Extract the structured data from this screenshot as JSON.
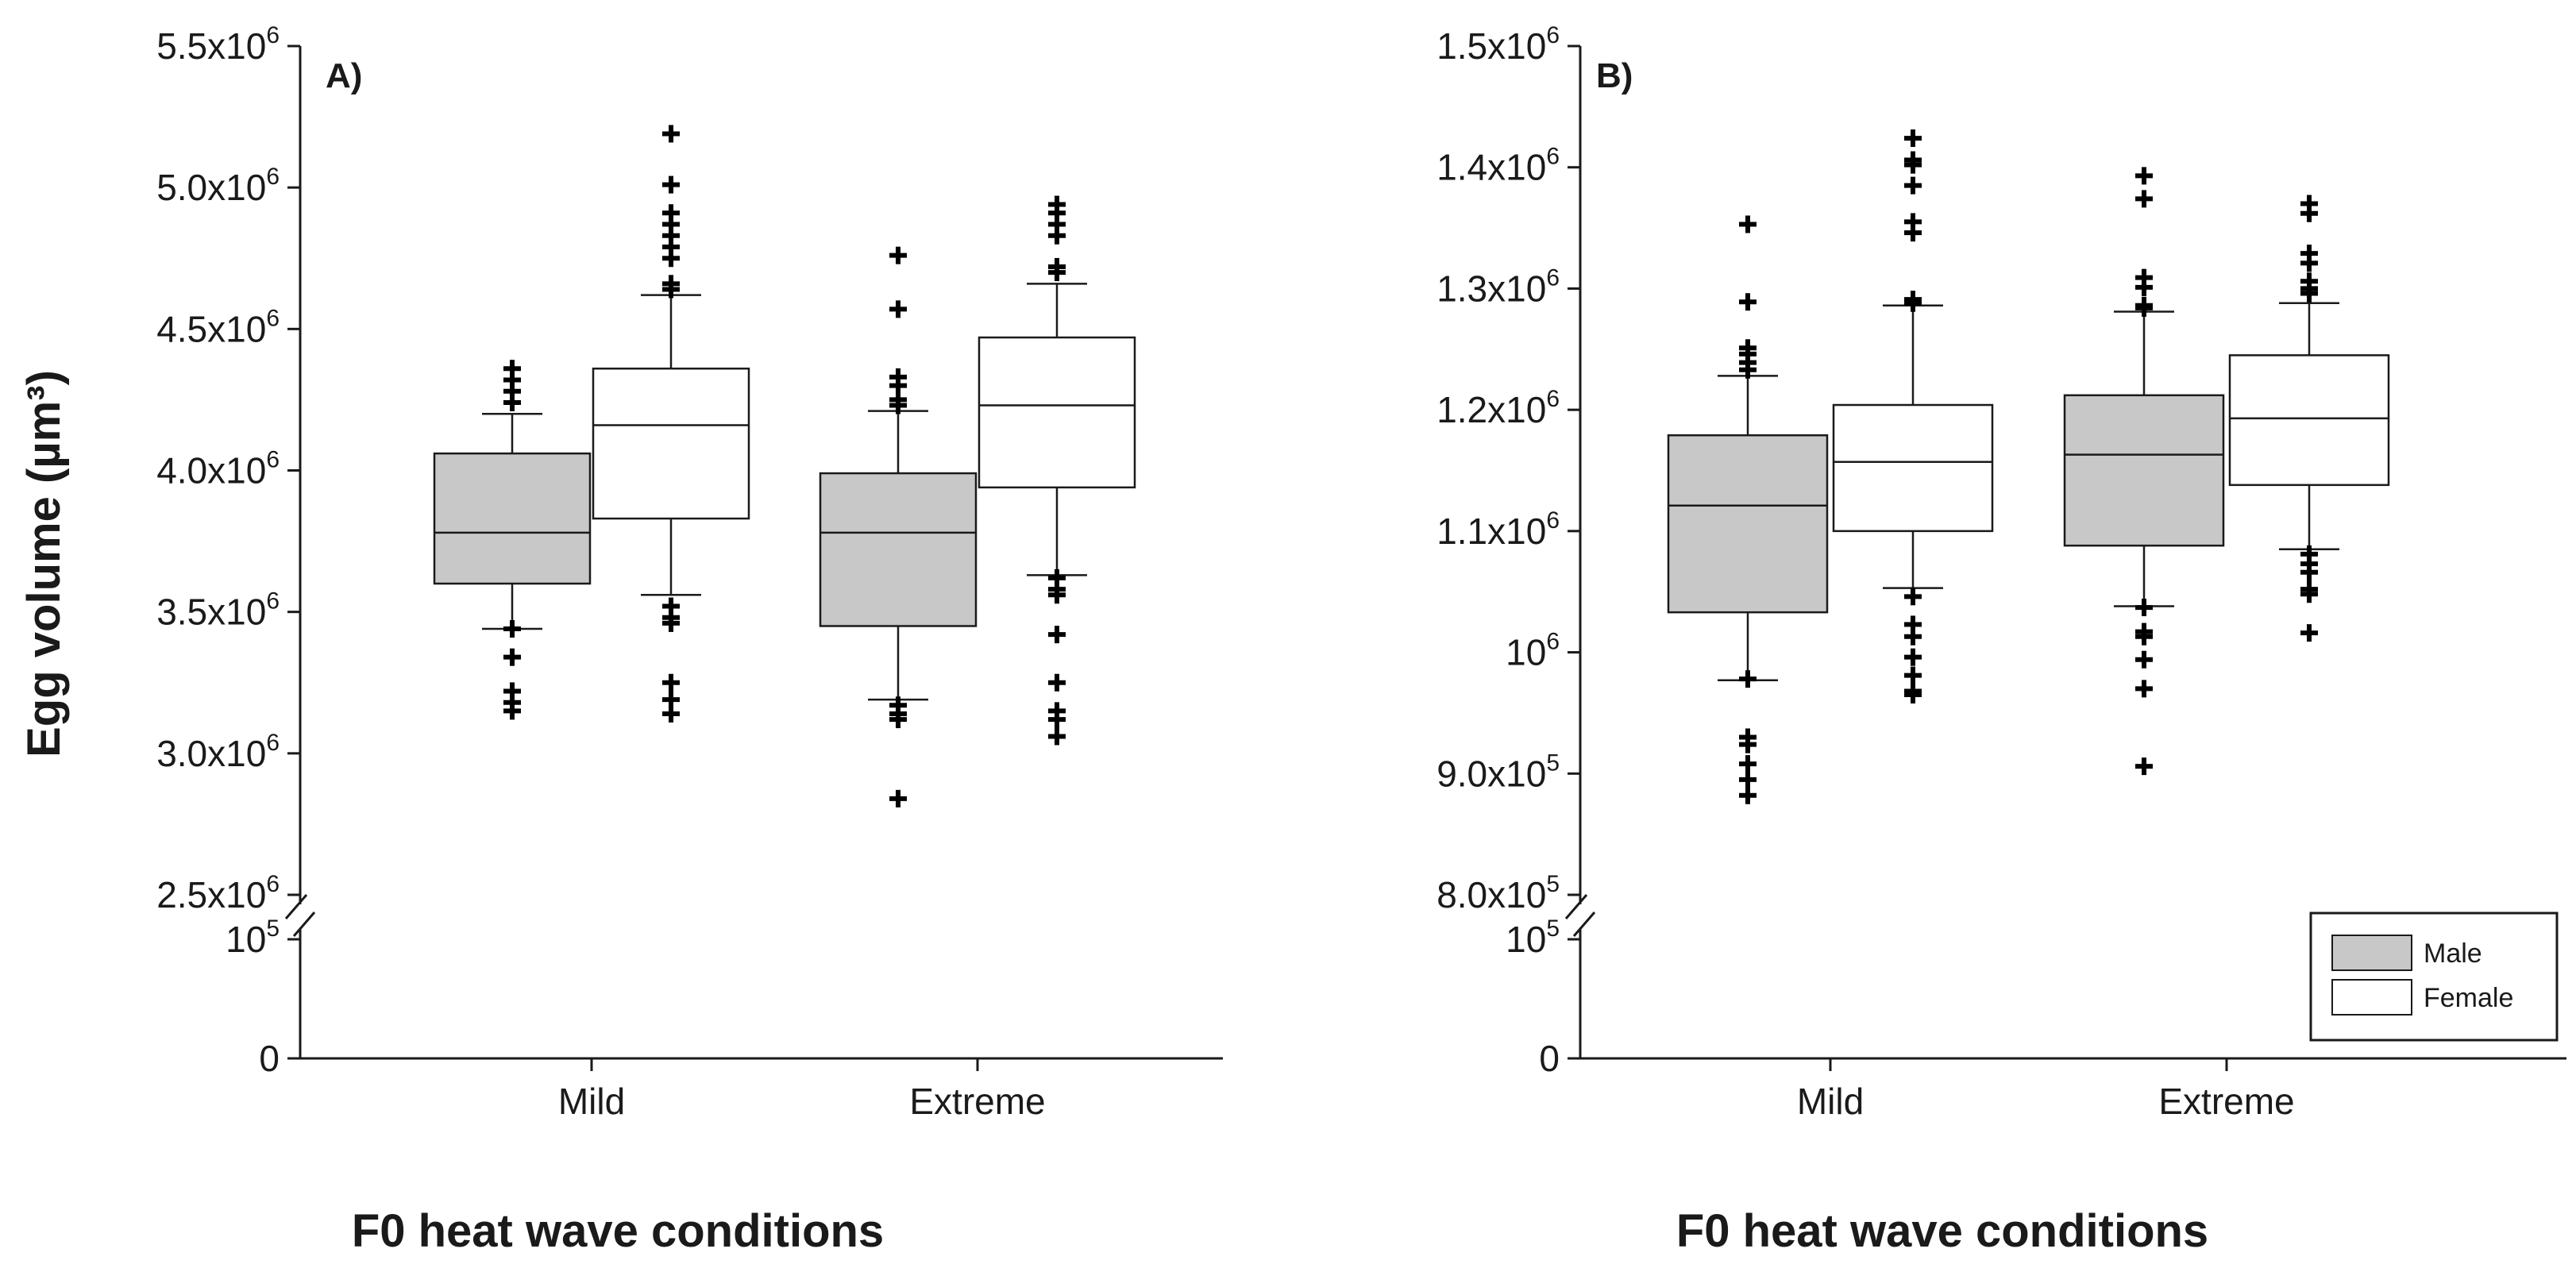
{
  "figure": {
    "y_axis_title": "Egg volume (µm³)",
    "x_axis_title": "F0 heat wave conditions"
  },
  "legend": {
    "items": [
      {
        "label": "Male",
        "color": "#c8c8c8"
      },
      {
        "label": "Female",
        "color": "#ffffff"
      }
    ]
  },
  "chart_data": [
    {
      "type": "box",
      "panel_label": "A)",
      "title": "",
      "xlabel": "F0 heat wave conditions",
      "ylabel": "Egg volume (µm³)",
      "categories": [
        "Mild",
        "Extreme"
      ],
      "axis_break": {
        "from": 100000,
        "to": 2500000
      },
      "ylim": [
        2500000,
        5500000
      ],
      "y_ticks": [
        {
          "value": 5500000,
          "base": "5.5x10",
          "exp": "6"
        },
        {
          "value": 5000000,
          "base": "5.0x10",
          "exp": "6"
        },
        {
          "value": 4500000,
          "base": "4.5x10",
          "exp": "6"
        },
        {
          "value": 4000000,
          "base": "4.0x10",
          "exp": "6"
        },
        {
          "value": 3500000,
          "base": "3.5x10",
          "exp": "6"
        },
        {
          "value": 3000000,
          "base": "3.0x10",
          "exp": "6"
        },
        {
          "value": 2500000,
          "base": "2.5x10",
          "exp": "6"
        }
      ],
      "lower_ticks": [
        {
          "value": 100000,
          "base": "10",
          "exp": "5"
        },
        {
          "value": 0,
          "base": "0",
          "exp": ""
        }
      ],
      "series": [
        {
          "name": "Male",
          "color": "#c8c8c8",
          "boxes": [
            {
              "category": "Mild",
              "whisker_low": 3440000,
              "q1": 3600000,
              "median": 3780000,
              "q3": 4060000,
              "whisker_high": 4200000,
              "outliers": [
                4360000,
                4320000,
                4280000,
                4240000,
                3440000,
                3340000,
                3220000,
                3180000,
                3150000
              ]
            },
            {
              "category": "Extreme",
              "whisker_low": 3190000,
              "q1": 3450000,
              "median": 3780000,
              "q3": 3990000,
              "whisker_high": 4210000,
              "outliers": [
                4760000,
                4570000,
                4330000,
                4300000,
                4250000,
                4230000,
                3170000,
                3140000,
                3120000,
                2840000
              ]
            }
          ]
        },
        {
          "name": "Female",
          "color": "#ffffff",
          "boxes": [
            {
              "category": "Mild",
              "whisker_low": 3560000,
              "q1": 3830000,
              "median": 4160000,
              "q3": 4360000,
              "whisker_high": 4620000,
              "outliers": [
                5190000,
                5010000,
                4910000,
                4870000,
                4830000,
                4790000,
                4750000,
                4660000,
                4640000,
                3520000,
                3480000,
                3460000,
                3250000,
                3190000,
                3140000
              ]
            },
            {
              "category": "Extreme",
              "whisker_low": 3630000,
              "q1": 3940000,
              "median": 4230000,
              "q3": 4470000,
              "whisker_high": 4660000,
              "outliers": [
                4940000,
                4910000,
                4870000,
                4830000,
                4720000,
                4700000,
                3620000,
                3580000,
                3560000,
                3420000,
                3250000,
                3150000,
                3120000,
                3060000
              ]
            }
          ]
        }
      ]
    },
    {
      "type": "box",
      "panel_label": "B)",
      "title": "",
      "xlabel": "F0 heat wave conditions",
      "ylabel": "",
      "categories": [
        "Mild",
        "Extreme"
      ],
      "axis_break": {
        "from": 100000,
        "to": 800000
      },
      "ylim": [
        800000,
        1500000
      ],
      "y_ticks": [
        {
          "value": 1500000,
          "base": "1.5x10",
          "exp": "6"
        },
        {
          "value": 1400000,
          "base": "1.4x10",
          "exp": "6"
        },
        {
          "value": 1300000,
          "base": "1.3x10",
          "exp": "6"
        },
        {
          "value": 1200000,
          "base": "1.2x10",
          "exp": "6"
        },
        {
          "value": 1100000,
          "base": "1.1x10",
          "exp": "6"
        },
        {
          "value": 1000000,
          "base": "10",
          "exp": "6"
        },
        {
          "value": 900000,
          "base": "9.0x10",
          "exp": "5"
        },
        {
          "value": 800000,
          "base": "8.0x10",
          "exp": "5"
        }
      ],
      "lower_ticks": [
        {
          "value": 100000,
          "base": "10",
          "exp": "5"
        },
        {
          "value": 0,
          "base": "0",
          "exp": ""
        }
      ],
      "series": [
        {
          "name": "Male",
          "color": "#c8c8c8",
          "boxes": [
            {
              "category": "Mild",
              "whisker_low": 977000,
              "q1": 1033000,
              "median": 1121000,
              "q3": 1179000,
              "whisker_high": 1228000,
              "outliers": [
                1353000,
                1289000,
                1251000,
                1246000,
                1239000,
                1233000,
                978000,
                930000,
                924000,
                908000,
                895000,
                882000
              ]
            },
            {
              "category": "Extreme",
              "whisker_low": 1038000,
              "q1": 1088000,
              "median": 1163000,
              "q3": 1212000,
              "whisker_high": 1281000,
              "outliers": [
                1393000,
                1374000,
                1309000,
                1301000,
                1286000,
                1284000,
                1037000,
                1017000,
                1013000,
                994000,
                970000,
                906000
              ]
            }
          ]
        },
        {
          "name": "Female",
          "color": "#ffffff",
          "boxes": [
            {
              "category": "Mild",
              "whisker_low": 1053000,
              "q1": 1100000,
              "median": 1157000,
              "q3": 1204000,
              "whisker_high": 1286000,
              "outliers": [
                1424000,
                1406000,
                1402000,
                1385000,
                1355000,
                1346000,
                1291000,
                1288000,
                1046000,
                1023000,
                1013000,
                996000,
                981000,
                968000,
                965000
              ]
            },
            {
              "category": "Extreme",
              "whisker_low": 1085000,
              "q1": 1138000,
              "median": 1193000,
              "q3": 1245000,
              "whisker_high": 1288000,
              "outliers": [
                1370000,
                1362000,
                1329000,
                1321000,
                1306000,
                1300000,
                1296000,
                1081000,
                1073000,
                1066000,
                1052000,
                1048000,
                1016000
              ]
            }
          ]
        }
      ]
    }
  ]
}
